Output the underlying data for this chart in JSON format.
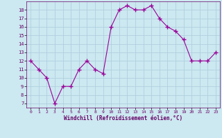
{
  "x": [
    0,
    1,
    2,
    3,
    4,
    5,
    6,
    7,
    8,
    9,
    10,
    11,
    12,
    13,
    14,
    15,
    16,
    17,
    18,
    19,
    20,
    21,
    22,
    23
  ],
  "y": [
    12,
    11,
    10,
    7,
    9,
    9,
    11,
    12,
    11,
    10.5,
    16,
    18,
    18.5,
    18,
    18,
    18.5,
    17,
    16,
    15.5,
    14.5,
    12,
    12,
    12,
    13
  ],
  "line_color": "#990099",
  "marker_color": "#990099",
  "bg_color": "#cce8f0",
  "grid_color": "#aaccdd",
  "xlabel": "Windchill (Refroidissement éolien,°C)",
  "xlabel_color": "#660066",
  "tick_color": "#660066",
  "ylim": [
    6.5,
    19.0
  ],
  "yticks": [
    7,
    8,
    9,
    10,
    11,
    12,
    13,
    14,
    15,
    16,
    17,
    18
  ],
  "xlim": [
    -0.5,
    23.5
  ],
  "xticks": [
    0,
    1,
    2,
    3,
    4,
    5,
    6,
    7,
    8,
    9,
    10,
    11,
    12,
    13,
    14,
    15,
    16,
    17,
    18,
    19,
    20,
    21,
    22,
    23
  ]
}
